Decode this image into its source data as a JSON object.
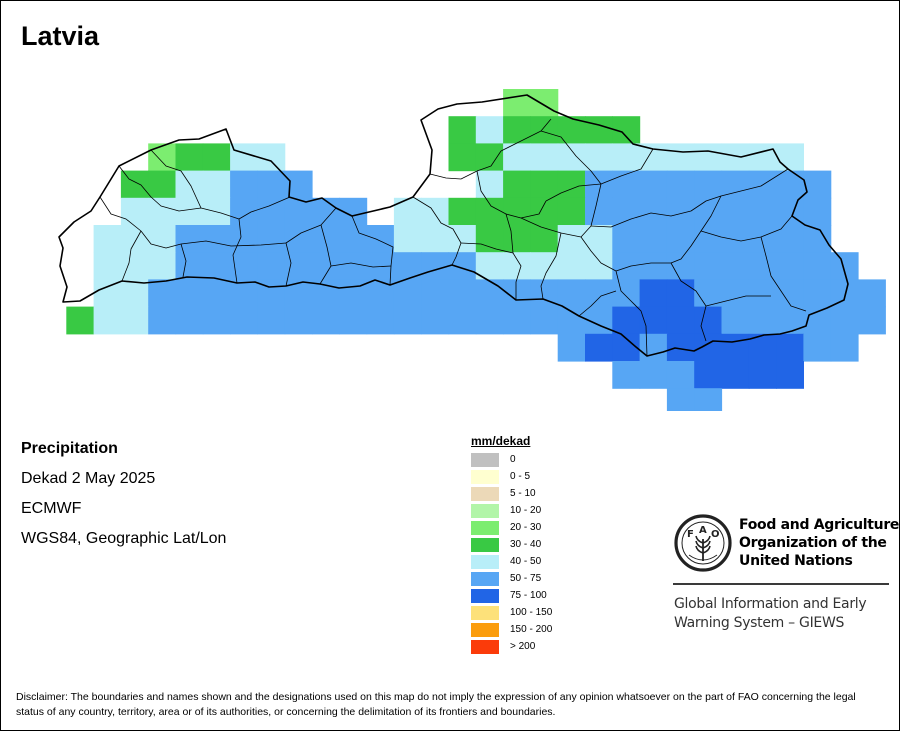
{
  "map": {
    "title": "Latvia",
    "info": {
      "variable": "Precipitation",
      "period": "Dekad 2 May 2025",
      "model": "ECMWF",
      "projection": "WGS84, Geographic Lat/Lon"
    },
    "legend": {
      "title": "mm/dekad",
      "classes": [
        {
          "label": "0",
          "color": "#c0c0c0"
        },
        {
          "label": "0 - 5",
          "color": "#ffffd0"
        },
        {
          "label": "5 - 10",
          "color": "#ecd9b8"
        },
        {
          "label": "10 - 20",
          "color": "#b2f5a8"
        },
        {
          "label": "20 - 30",
          "color": "#7ced70"
        },
        {
          "label": "30 - 40",
          "color": "#39c944"
        },
        {
          "label": "40 - 50",
          "color": "#b8eef8"
        },
        {
          "label": "50 - 75",
          "color": "#57a6f4"
        },
        {
          "label": "75 - 100",
          "color": "#2165e6"
        },
        {
          "label": "100 - 150",
          "color": "#fde17a"
        },
        {
          "label": "150 - 200",
          "color": "#fb9d0d"
        },
        {
          "label": "> 200",
          "color": "#fb3b0a"
        }
      ]
    },
    "grid_cells": [
      {
        "col": 17,
        "row": 0,
        "cls": 4
      },
      {
        "col": 18,
        "row": 0,
        "cls": 4
      },
      {
        "col": 15,
        "row": 1,
        "cls": 5
      },
      {
        "col": 16,
        "row": 1,
        "cls": 6
      },
      {
        "col": 17,
        "row": 1,
        "cls": 5
      },
      {
        "col": 18,
        "row": 1,
        "cls": 5
      },
      {
        "col": 19,
        "row": 1,
        "cls": 5
      },
      {
        "col": 20,
        "row": 1,
        "cls": 5
      },
      {
        "col": 21,
        "row": 1,
        "cls": 5
      },
      {
        "col": 4,
        "row": 2,
        "cls": 4
      },
      {
        "col": 5,
        "row": 2,
        "cls": 5
      },
      {
        "col": 6,
        "row": 2,
        "cls": 5
      },
      {
        "col": 7,
        "row": 2,
        "cls": 6
      },
      {
        "col": 8,
        "row": 2,
        "cls": 6
      },
      {
        "col": 15,
        "row": 2,
        "cls": 5
      },
      {
        "col": 16,
        "row": 2,
        "cls": 5
      },
      {
        "col": 17,
        "row": 2,
        "cls": 6
      },
      {
        "col": 18,
        "row": 2,
        "cls": 6
      },
      {
        "col": 19,
        "row": 2,
        "cls": 6
      },
      {
        "col": 20,
        "row": 2,
        "cls": 6
      },
      {
        "col": 21,
        "row": 2,
        "cls": 6
      },
      {
        "col": 22,
        "row": 2,
        "cls": 6
      },
      {
        "col": 23,
        "row": 2,
        "cls": 6
      },
      {
        "col": 24,
        "row": 2,
        "cls": 6
      },
      {
        "col": 25,
        "row": 2,
        "cls": 6
      },
      {
        "col": 26,
        "row": 2,
        "cls": 6
      },
      {
        "col": 27,
        "row": 2,
        "cls": 6
      },
      {
        "col": 3,
        "row": 3,
        "cls": 5
      },
      {
        "col": 4,
        "row": 3,
        "cls": 5
      },
      {
        "col": 5,
        "row": 3,
        "cls": 6
      },
      {
        "col": 6,
        "row": 3,
        "cls": 6
      },
      {
        "col": 7,
        "row": 3,
        "cls": 7
      },
      {
        "col": 8,
        "row": 3,
        "cls": 7
      },
      {
        "col": 9,
        "row": 3,
        "cls": 7
      },
      {
        "col": 16,
        "row": 3,
        "cls": 6
      },
      {
        "col": 17,
        "row": 3,
        "cls": 5
      },
      {
        "col": 18,
        "row": 3,
        "cls": 5
      },
      {
        "col": 19,
        "row": 3,
        "cls": 5
      },
      {
        "col": 20,
        "row": 3,
        "cls": 7
      },
      {
        "col": 21,
        "row": 3,
        "cls": 7
      },
      {
        "col": 22,
        "row": 3,
        "cls": 7
      },
      {
        "col": 23,
        "row": 3,
        "cls": 7
      },
      {
        "col": 24,
        "row": 3,
        "cls": 7
      },
      {
        "col": 25,
        "row": 3,
        "cls": 7
      },
      {
        "col": 26,
        "row": 3,
        "cls": 7
      },
      {
        "col": 27,
        "row": 3,
        "cls": 7
      },
      {
        "col": 28,
        "row": 3,
        "cls": 7
      },
      {
        "col": 3,
        "row": 4,
        "cls": 6
      },
      {
        "col": 4,
        "row": 4,
        "cls": 6
      },
      {
        "col": 5,
        "row": 4,
        "cls": 6
      },
      {
        "col": 6,
        "row": 4,
        "cls": 6
      },
      {
        "col": 7,
        "row": 4,
        "cls": 7
      },
      {
        "col": 8,
        "row": 4,
        "cls": 7
      },
      {
        "col": 9,
        "row": 4,
        "cls": 7
      },
      {
        "col": 10,
        "row": 4,
        "cls": 7
      },
      {
        "col": 11,
        "row": 4,
        "cls": 7
      },
      {
        "col": 13,
        "row": 4,
        "cls": 6
      },
      {
        "col": 14,
        "row": 4,
        "cls": 6
      },
      {
        "col": 15,
        "row": 4,
        "cls": 5
      },
      {
        "col": 16,
        "row": 4,
        "cls": 5
      },
      {
        "col": 17,
        "row": 4,
        "cls": 5
      },
      {
        "col": 18,
        "row": 4,
        "cls": 5
      },
      {
        "col": 19,
        "row": 4,
        "cls": 5
      },
      {
        "col": 20,
        "row": 4,
        "cls": 7
      },
      {
        "col": 21,
        "row": 4,
        "cls": 7
      },
      {
        "col": 22,
        "row": 4,
        "cls": 7
      },
      {
        "col": 23,
        "row": 4,
        "cls": 7
      },
      {
        "col": 24,
        "row": 4,
        "cls": 7
      },
      {
        "col": 25,
        "row": 4,
        "cls": 7
      },
      {
        "col": 26,
        "row": 4,
        "cls": 7
      },
      {
        "col": 27,
        "row": 4,
        "cls": 7
      },
      {
        "col": 28,
        "row": 4,
        "cls": 7
      },
      {
        "col": 2,
        "row": 5,
        "cls": 6
      },
      {
        "col": 3,
        "row": 5,
        "cls": 6
      },
      {
        "col": 4,
        "row": 5,
        "cls": 6
      },
      {
        "col": 5,
        "row": 5,
        "cls": 7
      },
      {
        "col": 6,
        "row": 5,
        "cls": 7
      },
      {
        "col": 7,
        "row": 5,
        "cls": 7
      },
      {
        "col": 8,
        "row": 5,
        "cls": 7
      },
      {
        "col": 9,
        "row": 5,
        "cls": 7
      },
      {
        "col": 10,
        "row": 5,
        "cls": 7
      },
      {
        "col": 11,
        "row": 5,
        "cls": 7
      },
      {
        "col": 12,
        "row": 5,
        "cls": 7
      },
      {
        "col": 13,
        "row": 5,
        "cls": 6
      },
      {
        "col": 14,
        "row": 5,
        "cls": 6
      },
      {
        "col": 15,
        "row": 5,
        "cls": 6
      },
      {
        "col": 16,
        "row": 5,
        "cls": 5
      },
      {
        "col": 17,
        "row": 5,
        "cls": 5
      },
      {
        "col": 18,
        "row": 5,
        "cls": 5
      },
      {
        "col": 19,
        "row": 5,
        "cls": 6
      },
      {
        "col": 20,
        "row": 5,
        "cls": 6
      },
      {
        "col": 21,
        "row": 5,
        "cls": 7
      },
      {
        "col": 22,
        "row": 5,
        "cls": 7
      },
      {
        "col": 23,
        "row": 5,
        "cls": 7
      },
      {
        "col": 24,
        "row": 5,
        "cls": 7
      },
      {
        "col": 25,
        "row": 5,
        "cls": 7
      },
      {
        "col": 26,
        "row": 5,
        "cls": 7
      },
      {
        "col": 27,
        "row": 5,
        "cls": 7
      },
      {
        "col": 28,
        "row": 5,
        "cls": 7
      },
      {
        "col": 2,
        "row": 6,
        "cls": 6
      },
      {
        "col": 3,
        "row": 6,
        "cls": 6
      },
      {
        "col": 4,
        "row": 6,
        "cls": 6
      },
      {
        "col": 5,
        "row": 6,
        "cls": 7
      },
      {
        "col": 6,
        "row": 6,
        "cls": 7
      },
      {
        "col": 7,
        "row": 6,
        "cls": 7
      },
      {
        "col": 8,
        "row": 6,
        "cls": 7
      },
      {
        "col": 9,
        "row": 6,
        "cls": 7
      },
      {
        "col": 10,
        "row": 6,
        "cls": 7
      },
      {
        "col": 11,
        "row": 6,
        "cls": 7
      },
      {
        "col": 12,
        "row": 6,
        "cls": 7
      },
      {
        "col": 13,
        "row": 6,
        "cls": 7
      },
      {
        "col": 14,
        "row": 6,
        "cls": 7
      },
      {
        "col": 15,
        "row": 6,
        "cls": 7
      },
      {
        "col": 16,
        "row": 6,
        "cls": 6
      },
      {
        "col": 17,
        "row": 6,
        "cls": 6
      },
      {
        "col": 18,
        "row": 6,
        "cls": 6
      },
      {
        "col": 19,
        "row": 6,
        "cls": 6
      },
      {
        "col": 20,
        "row": 6,
        "cls": 6
      },
      {
        "col": 21,
        "row": 6,
        "cls": 7
      },
      {
        "col": 22,
        "row": 6,
        "cls": 7
      },
      {
        "col": 23,
        "row": 6,
        "cls": 7
      },
      {
        "col": 24,
        "row": 6,
        "cls": 7
      },
      {
        "col": 25,
        "row": 6,
        "cls": 7
      },
      {
        "col": 26,
        "row": 6,
        "cls": 7
      },
      {
        "col": 27,
        "row": 6,
        "cls": 7
      },
      {
        "col": 28,
        "row": 6,
        "cls": 7
      },
      {
        "col": 29,
        "row": 6,
        "cls": 7
      },
      {
        "col": 2,
        "row": 7,
        "cls": 6
      },
      {
        "col": 3,
        "row": 7,
        "cls": 6
      },
      {
        "col": 4,
        "row": 7,
        "cls": 7
      },
      {
        "col": 5,
        "row": 7,
        "cls": 7
      },
      {
        "col": 6,
        "row": 7,
        "cls": 7
      },
      {
        "col": 7,
        "row": 7,
        "cls": 7
      },
      {
        "col": 8,
        "row": 7,
        "cls": 7
      },
      {
        "col": 9,
        "row": 7,
        "cls": 7
      },
      {
        "col": 10,
        "row": 7,
        "cls": 7
      },
      {
        "col": 11,
        "row": 7,
        "cls": 7
      },
      {
        "col": 12,
        "row": 7,
        "cls": 7
      },
      {
        "col": 13,
        "row": 7,
        "cls": 7
      },
      {
        "col": 14,
        "row": 7,
        "cls": 7
      },
      {
        "col": 15,
        "row": 7,
        "cls": 7
      },
      {
        "col": 16,
        "row": 7,
        "cls": 7
      },
      {
        "col": 17,
        "row": 7,
        "cls": 7
      },
      {
        "col": 18,
        "row": 7,
        "cls": 7
      },
      {
        "col": 19,
        "row": 7,
        "cls": 7
      },
      {
        "col": 20,
        "row": 7,
        "cls": 7
      },
      {
        "col": 21,
        "row": 7,
        "cls": 7
      },
      {
        "col": 22,
        "row": 7,
        "cls": 8
      },
      {
        "col": 23,
        "row": 7,
        "cls": 8
      },
      {
        "col": 24,
        "row": 7,
        "cls": 7
      },
      {
        "col": 25,
        "row": 7,
        "cls": 7
      },
      {
        "col": 26,
        "row": 7,
        "cls": 7
      },
      {
        "col": 27,
        "row": 7,
        "cls": 7
      },
      {
        "col": 28,
        "row": 7,
        "cls": 7
      },
      {
        "col": 29,
        "row": 7,
        "cls": 7
      },
      {
        "col": 30,
        "row": 7,
        "cls": 7
      },
      {
        "col": 1,
        "row": 8,
        "cls": 5
      },
      {
        "col": 2,
        "row": 8,
        "cls": 6
      },
      {
        "col": 3,
        "row": 8,
        "cls": 6
      },
      {
        "col": 4,
        "row": 8,
        "cls": 7
      },
      {
        "col": 5,
        "row": 8,
        "cls": 7
      },
      {
        "col": 6,
        "row": 8,
        "cls": 7
      },
      {
        "col": 7,
        "row": 8,
        "cls": 7
      },
      {
        "col": 8,
        "row": 8,
        "cls": 7
      },
      {
        "col": 9,
        "row": 8,
        "cls": 7
      },
      {
        "col": 10,
        "row": 8,
        "cls": 7
      },
      {
        "col": 11,
        "row": 8,
        "cls": 7
      },
      {
        "col": 12,
        "row": 8,
        "cls": 7
      },
      {
        "col": 13,
        "row": 8,
        "cls": 7
      },
      {
        "col": 14,
        "row": 8,
        "cls": 7
      },
      {
        "col": 15,
        "row": 8,
        "cls": 7
      },
      {
        "col": 16,
        "row": 8,
        "cls": 7
      },
      {
        "col": 17,
        "row": 8,
        "cls": 7
      },
      {
        "col": 18,
        "row": 8,
        "cls": 7
      },
      {
        "col": 19,
        "row": 8,
        "cls": 7
      },
      {
        "col": 20,
        "row": 8,
        "cls": 7
      },
      {
        "col": 21,
        "row": 8,
        "cls": 8
      },
      {
        "col": 22,
        "row": 8,
        "cls": 8
      },
      {
        "col": 23,
        "row": 8,
        "cls": 8
      },
      {
        "col": 24,
        "row": 8,
        "cls": 8
      },
      {
        "col": 25,
        "row": 8,
        "cls": 7
      },
      {
        "col": 26,
        "row": 8,
        "cls": 7
      },
      {
        "col": 27,
        "row": 8,
        "cls": 7
      },
      {
        "col": 28,
        "row": 8,
        "cls": 7
      },
      {
        "col": 29,
        "row": 8,
        "cls": 7
      },
      {
        "col": 30,
        "row": 8,
        "cls": 7
      },
      {
        "col": 19,
        "row": 9,
        "cls": 7
      },
      {
        "col": 20,
        "row": 9,
        "cls": 8
      },
      {
        "col": 21,
        "row": 9,
        "cls": 8
      },
      {
        "col": 22,
        "row": 9,
        "cls": 7
      },
      {
        "col": 23,
        "row": 9,
        "cls": 8
      },
      {
        "col": 24,
        "row": 9,
        "cls": 8
      },
      {
        "col": 25,
        "row": 9,
        "cls": 8
      },
      {
        "col": 26,
        "row": 9,
        "cls": 8
      },
      {
        "col": 27,
        "row": 9,
        "cls": 8
      },
      {
        "col": 28,
        "row": 9,
        "cls": 7
      },
      {
        "col": 29,
        "row": 9,
        "cls": 7
      },
      {
        "col": 21,
        "row": 10,
        "cls": 7
      },
      {
        "col": 22,
        "row": 10,
        "cls": 7
      },
      {
        "col": 23,
        "row": 10,
        "cls": 7
      },
      {
        "col": 24,
        "row": 10,
        "cls": 8
      },
      {
        "col": 25,
        "row": 10,
        "cls": 8
      },
      {
        "col": 26,
        "row": 10,
        "cls": 8
      },
      {
        "col": 27,
        "row": 10,
        "cls": 8
      },
      {
        "col": 23,
        "row": 11,
        "cls": 7
      },
      {
        "col": 24,
        "row": 11,
        "cls": 7
      }
    ]
  },
  "organization": {
    "name_lines": [
      "Food and Agriculture",
      "Organization of the",
      "United Nations"
    ],
    "logo_text": "FAO",
    "logo_motto": "FIAT PANIS",
    "system_lines": [
      "Global Information and Early",
      "Warning System – GIEWS"
    ]
  },
  "disclaimer": "Disclaimer: The boundaries and names shown and the designations used on this map do not imply the expression of any opinion whatsoever on the part of FAO concerning the legal status of any country, territory, area or of its authorities, or concerning the delimitation of its frontiers and boundaries."
}
